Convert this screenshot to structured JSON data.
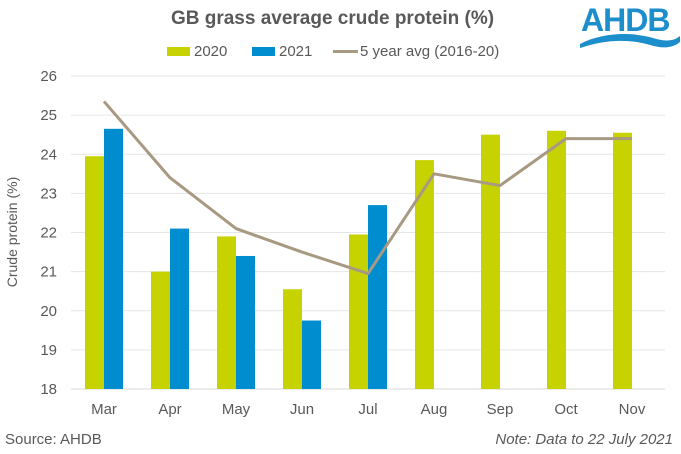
{
  "header": {
    "logo_text": "AHDB"
  },
  "chart_data": {
    "type": "bar",
    "title": "GB grass average crude protein (%)",
    "xlabel": "",
    "ylabel": "Crude protein (%)",
    "ylim": [
      18,
      26
    ],
    "yticks": [
      "18",
      "19",
      "20",
      "21",
      "22",
      "23",
      "24",
      "25",
      "26"
    ],
    "grid": true,
    "legend_position": "top",
    "categories": [
      "Mar",
      "Apr",
      "May",
      "Jun",
      "Jul",
      "Aug",
      "Sep",
      "Oct",
      "Nov"
    ],
    "series": [
      {
        "name": "2020",
        "type": "bar",
        "color": "#C6D300",
        "values": [
          23.95,
          21.0,
          21.9,
          20.55,
          21.95,
          23.85,
          24.5,
          24.6,
          24.55
        ]
      },
      {
        "name": "2021",
        "type": "bar",
        "color": "#008DCF",
        "values": [
          24.65,
          22.1,
          21.4,
          19.75,
          22.7,
          null,
          null,
          null,
          null
        ]
      },
      {
        "name": "5 year avg (2016-20)",
        "type": "line",
        "color": "#A89A82",
        "values": [
          25.35,
          23.4,
          22.1,
          21.5,
          20.95,
          23.5,
          23.2,
          24.4,
          24.4
        ]
      }
    ]
  },
  "footer": {
    "source": "Source: AHDB",
    "note": "Note: Data to 22 July 2021"
  }
}
